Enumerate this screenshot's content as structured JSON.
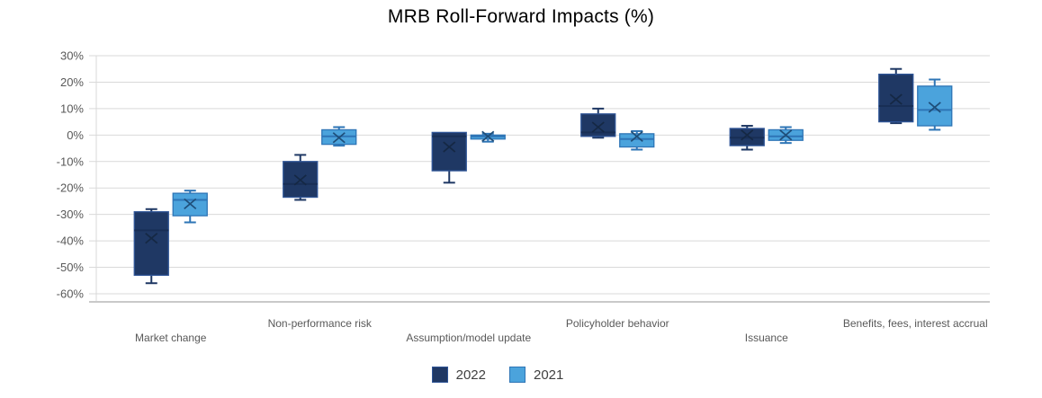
{
  "chart_data": {
    "type": "boxplot",
    "title": "MRB Roll-Forward Impacts (%)",
    "categories": [
      "Market change",
      "Non-performance risk",
      "Assumption/model update",
      "Policyholder behavior",
      "Issuance",
      "Benefits, fees, interest accrual"
    ],
    "y_axis": {
      "unit": "%",
      "min": -60,
      "max": 30,
      "step": 10,
      "tick_labels": [
        "30%",
        "20%",
        "10%",
        "0%",
        "-10%",
        "-20%",
        "-30%",
        "-40%",
        "-50%",
        "-60%"
      ],
      "tick_values": [
        30,
        20,
        10,
        0,
        -10,
        -20,
        -30,
        -40,
        -50,
        -60
      ]
    },
    "grid": true,
    "legend_position": "bottom",
    "legend": [
      "2022",
      "2021"
    ],
    "series": [
      {
        "name": "2022",
        "fill": "#1F3864",
        "border": "#2F5597",
        "whisker": "#1F3864",
        "median_color": "#182E55",
        "marker_color": "#152844",
        "values": [
          {
            "min": -56,
            "q1": -53,
            "median": -36,
            "q3": -29,
            "max": -28,
            "mean": -39
          },
          {
            "min": -24.5,
            "q1": -23.5,
            "median": -18.5,
            "q3": -10,
            "max": -7.5,
            "mean": -17
          },
          {
            "min": -18,
            "q1": -13.5,
            "median": -0.5,
            "q3": 1,
            "max": 1,
            "mean": -4.5
          },
          {
            "min": -1,
            "q1": -0.5,
            "median": 1,
            "q3": 8,
            "max": 10,
            "mean": 3
          },
          {
            "min": -5.5,
            "q1": -4,
            "median": -1,
            "q3": 2.5,
            "max": 3.5,
            "mean": 0
          },
          {
            "min": 4.5,
            "q1": 5,
            "median": 11,
            "q3": 23,
            "max": 25,
            "mean": 13.5
          }
        ]
      },
      {
        "name": "2021",
        "fill": "#4BA3DC",
        "border": "#2E75B6",
        "whisker": "#2E75B6",
        "median_color": "#2E75B6",
        "marker_color": "#1F4E79",
        "values": [
          {
            "min": -33,
            "q1": -30.5,
            "median": -24.5,
            "q3": -22,
            "max": -21,
            "mean": -26
          },
          {
            "min": -4,
            "q1": -3.5,
            "median": -0.5,
            "q3": 2,
            "max": 3,
            "mean": -1
          },
          {
            "min": -2.5,
            "q1": -1.5,
            "median": -0.5,
            "q3": 0,
            "max": 0.5,
            "mean": -0.5
          },
          {
            "min": -5.5,
            "q1": -4.5,
            "median": -1.5,
            "q3": 0.5,
            "max": 1.5,
            "mean": -0.5
          },
          {
            "min": -3,
            "q1": -2,
            "median": -0.5,
            "q3": 2,
            "max": 3,
            "mean": 0
          },
          {
            "min": 2,
            "q1": 3.5,
            "median": 9.5,
            "q3": 18.5,
            "max": 21,
            "mean": 10.5
          }
        ]
      }
    ]
  },
  "colors": {
    "gridline": "#D9D9D9",
    "axis_line": "#C9C9C9",
    "tick_label": "#595959",
    "category_label": "#595959",
    "legend_text": "#404040",
    "title": "#000000",
    "background": "#FFFFFF"
  }
}
